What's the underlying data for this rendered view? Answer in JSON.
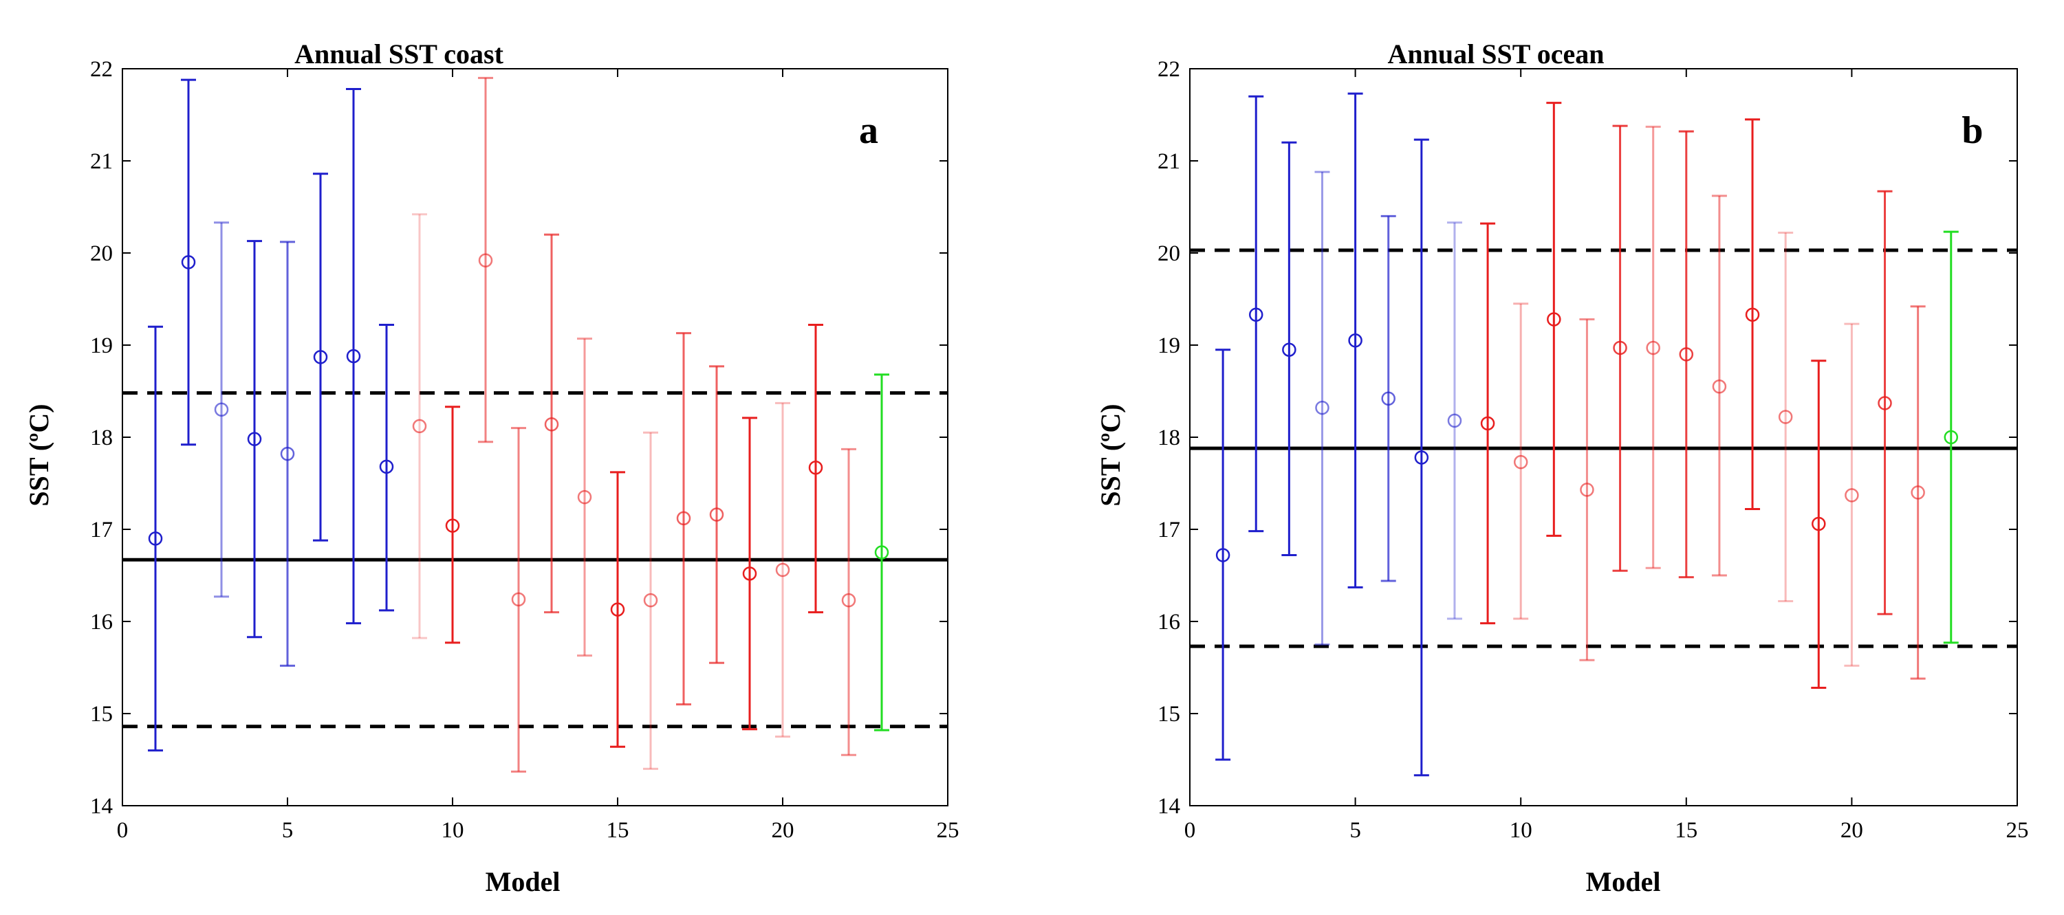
{
  "colors": {
    "blue": "#1f1fcc",
    "red": "#e81e1e",
    "green": "#22dd22",
    "black": "#000000"
  },
  "chart_data": [
    {
      "type": "errorbar",
      "title": "Annual SST coast",
      "panel_label": "a",
      "xlabel": "Model",
      "ylabel": "SST (ºC)",
      "xlim": [
        0,
        25
      ],
      "ylim": [
        14,
        22
      ],
      "xticks": [
        0,
        5,
        10,
        15,
        20,
        25
      ],
      "yticks": [
        14,
        15,
        16,
        17,
        18,
        19,
        20,
        21,
        22
      ],
      "grid": false,
      "reference_lines": [
        {
          "y": 16.67,
          "style": "solid"
        },
        {
          "y": 18.48,
          "style": "dashed"
        },
        {
          "y": 14.86,
          "style": "dashed"
        }
      ],
      "points": [
        {
          "x": 1,
          "mean": 16.9,
          "low": 14.6,
          "high": 19.2,
          "color": "blue",
          "alpha": 1.0
        },
        {
          "x": 2,
          "mean": 19.9,
          "low": 17.92,
          "high": 21.88,
          "color": "blue",
          "alpha": 1.0
        },
        {
          "x": 3,
          "mean": 18.3,
          "low": 16.27,
          "high": 20.33,
          "color": "blue",
          "alpha": 0.5
        },
        {
          "x": 4,
          "mean": 17.98,
          "low": 15.83,
          "high": 20.13,
          "color": "blue",
          "alpha": 1.0
        },
        {
          "x": 5,
          "mean": 17.82,
          "low": 15.52,
          "high": 20.12,
          "color": "blue",
          "alpha": 0.7
        },
        {
          "x": 6,
          "mean": 18.87,
          "low": 16.88,
          "high": 20.86,
          "color": "blue",
          "alpha": 1.0
        },
        {
          "x": 7,
          "mean": 18.88,
          "low": 15.98,
          "high": 21.78,
          "color": "blue",
          "alpha": 1.0
        },
        {
          "x": 8,
          "mean": 17.68,
          "low": 16.12,
          "high": 19.22,
          "color": "blue",
          "alpha": 1.0
        },
        {
          "x": 9,
          "mean": 18.12,
          "low": 15.82,
          "high": 20.42,
          "color": "red",
          "alpha": 0.25
        },
        {
          "x": 10,
          "mean": 17.04,
          "low": 15.77,
          "high": 18.33,
          "color": "red",
          "alpha": 1.0
        },
        {
          "x": 11,
          "mean": 19.92,
          "low": 17.95,
          "high": 21.9,
          "color": "red",
          "alpha": 0.55
        },
        {
          "x": 12,
          "mean": 16.24,
          "low": 14.37,
          "high": 18.1,
          "color": "red",
          "alpha": 0.55
        },
        {
          "x": 13,
          "mean": 18.14,
          "low": 16.1,
          "high": 20.2,
          "color": "red",
          "alpha": 0.7
        },
        {
          "x": 14,
          "mean": 17.35,
          "low": 15.63,
          "high": 19.07,
          "color": "red",
          "alpha": 0.45
        },
        {
          "x": 15,
          "mean": 16.13,
          "low": 14.64,
          "high": 17.62,
          "color": "red",
          "alpha": 1.0
        },
        {
          "x": 16,
          "mean": 16.23,
          "low": 14.4,
          "high": 18.05,
          "color": "red",
          "alpha": 0.3
        },
        {
          "x": 17,
          "mean": 17.12,
          "low": 15.1,
          "high": 19.13,
          "color": "red",
          "alpha": 0.7
        },
        {
          "x": 18,
          "mean": 17.16,
          "low": 15.55,
          "high": 18.77,
          "color": "red",
          "alpha": 0.7
        },
        {
          "x": 19,
          "mean": 16.52,
          "low": 14.83,
          "high": 18.21,
          "color": "red",
          "alpha": 1.0
        },
        {
          "x": 20,
          "mean": 16.56,
          "low": 14.75,
          "high": 18.37,
          "color": "red",
          "alpha": 0.3
        },
        {
          "x": 21,
          "mean": 17.67,
          "low": 16.1,
          "high": 19.22,
          "color": "red",
          "alpha": 1.0
        },
        {
          "x": 22,
          "mean": 16.23,
          "low": 14.55,
          "high": 17.87,
          "color": "red",
          "alpha": 0.5
        },
        {
          "x": 23,
          "mean": 16.75,
          "low": 14.82,
          "high": 18.68,
          "color": "green",
          "alpha": 1.0
        }
      ]
    },
    {
      "type": "errorbar",
      "title": "Annual SST ocean",
      "panel_label": "b",
      "xlabel": "Model",
      "ylabel": "SST (ºC)",
      "xlim": [
        0,
        25
      ],
      "ylim": [
        14,
        22
      ],
      "xticks": [
        0,
        5,
        10,
        15,
        20,
        25
      ],
      "yticks": [
        14,
        15,
        16,
        17,
        18,
        19,
        20,
        21,
        22
      ],
      "grid": false,
      "reference_lines": [
        {
          "y": 17.88,
          "style": "solid"
        },
        {
          "y": 20.03,
          "style": "dashed"
        },
        {
          "y": 15.73,
          "style": "dashed"
        }
      ],
      "points": [
        {
          "x": 1,
          "mean": 16.72,
          "low": 14.5,
          "high": 18.95,
          "color": "blue",
          "alpha": 1.0
        },
        {
          "x": 2,
          "mean": 19.33,
          "low": 16.98,
          "high": 21.7,
          "color": "blue",
          "alpha": 1.0
        },
        {
          "x": 3,
          "mean": 18.95,
          "low": 16.72,
          "high": 21.2,
          "color": "blue",
          "alpha": 1.0
        },
        {
          "x": 4,
          "mean": 18.32,
          "low": 15.75,
          "high": 20.88,
          "color": "blue",
          "alpha": 0.45
        },
        {
          "x": 5,
          "mean": 19.05,
          "low": 16.37,
          "high": 21.73,
          "color": "blue",
          "alpha": 1.0
        },
        {
          "x": 6,
          "mean": 18.42,
          "low": 16.44,
          "high": 20.4,
          "color": "blue",
          "alpha": 0.7
        },
        {
          "x": 7,
          "mean": 17.78,
          "low": 14.33,
          "high": 21.23,
          "color": "blue",
          "alpha": 1.0
        },
        {
          "x": 8,
          "mean": 18.18,
          "low": 16.03,
          "high": 20.33,
          "color": "blue",
          "alpha": 0.35
        },
        {
          "x": 9,
          "mean": 18.15,
          "low": 15.98,
          "high": 20.32,
          "color": "red",
          "alpha": 1.0
        },
        {
          "x": 10,
          "mean": 17.73,
          "low": 16.03,
          "high": 19.45,
          "color": "red",
          "alpha": 0.35
        },
        {
          "x": 11,
          "mean": 19.28,
          "low": 16.93,
          "high": 21.63,
          "color": "red",
          "alpha": 1.0
        },
        {
          "x": 12,
          "mean": 17.43,
          "low": 15.58,
          "high": 19.28,
          "color": "red",
          "alpha": 0.5
        },
        {
          "x": 13,
          "mean": 18.97,
          "low": 16.55,
          "high": 21.38,
          "color": "red",
          "alpha": 0.85
        },
        {
          "x": 14,
          "mean": 18.97,
          "low": 16.58,
          "high": 21.37,
          "color": "red",
          "alpha": 0.45
        },
        {
          "x": 15,
          "mean": 18.9,
          "low": 16.48,
          "high": 21.32,
          "color": "red",
          "alpha": 0.85
        },
        {
          "x": 16,
          "mean": 18.55,
          "low": 16.5,
          "high": 20.62,
          "color": "red",
          "alpha": 0.5
        },
        {
          "x": 17,
          "mean": 19.33,
          "low": 17.22,
          "high": 21.45,
          "color": "red",
          "alpha": 1.0
        },
        {
          "x": 18,
          "mean": 18.22,
          "low": 16.22,
          "high": 20.22,
          "color": "red",
          "alpha": 0.3
        },
        {
          "x": 19,
          "mean": 17.06,
          "low": 15.28,
          "high": 18.83,
          "color": "red",
          "alpha": 1.0
        },
        {
          "x": 20,
          "mean": 17.37,
          "low": 15.52,
          "high": 19.23,
          "color": "red",
          "alpha": 0.3
        },
        {
          "x": 21,
          "mean": 18.37,
          "low": 16.08,
          "high": 20.67,
          "color": "red",
          "alpha": 0.85
        },
        {
          "x": 22,
          "mean": 17.4,
          "low": 15.38,
          "high": 19.42,
          "color": "red",
          "alpha": 0.6
        },
        {
          "x": 23,
          "mean": 18.0,
          "low": 15.77,
          "high": 20.23,
          "color": "green",
          "alpha": 1.0
        }
      ]
    }
  ]
}
